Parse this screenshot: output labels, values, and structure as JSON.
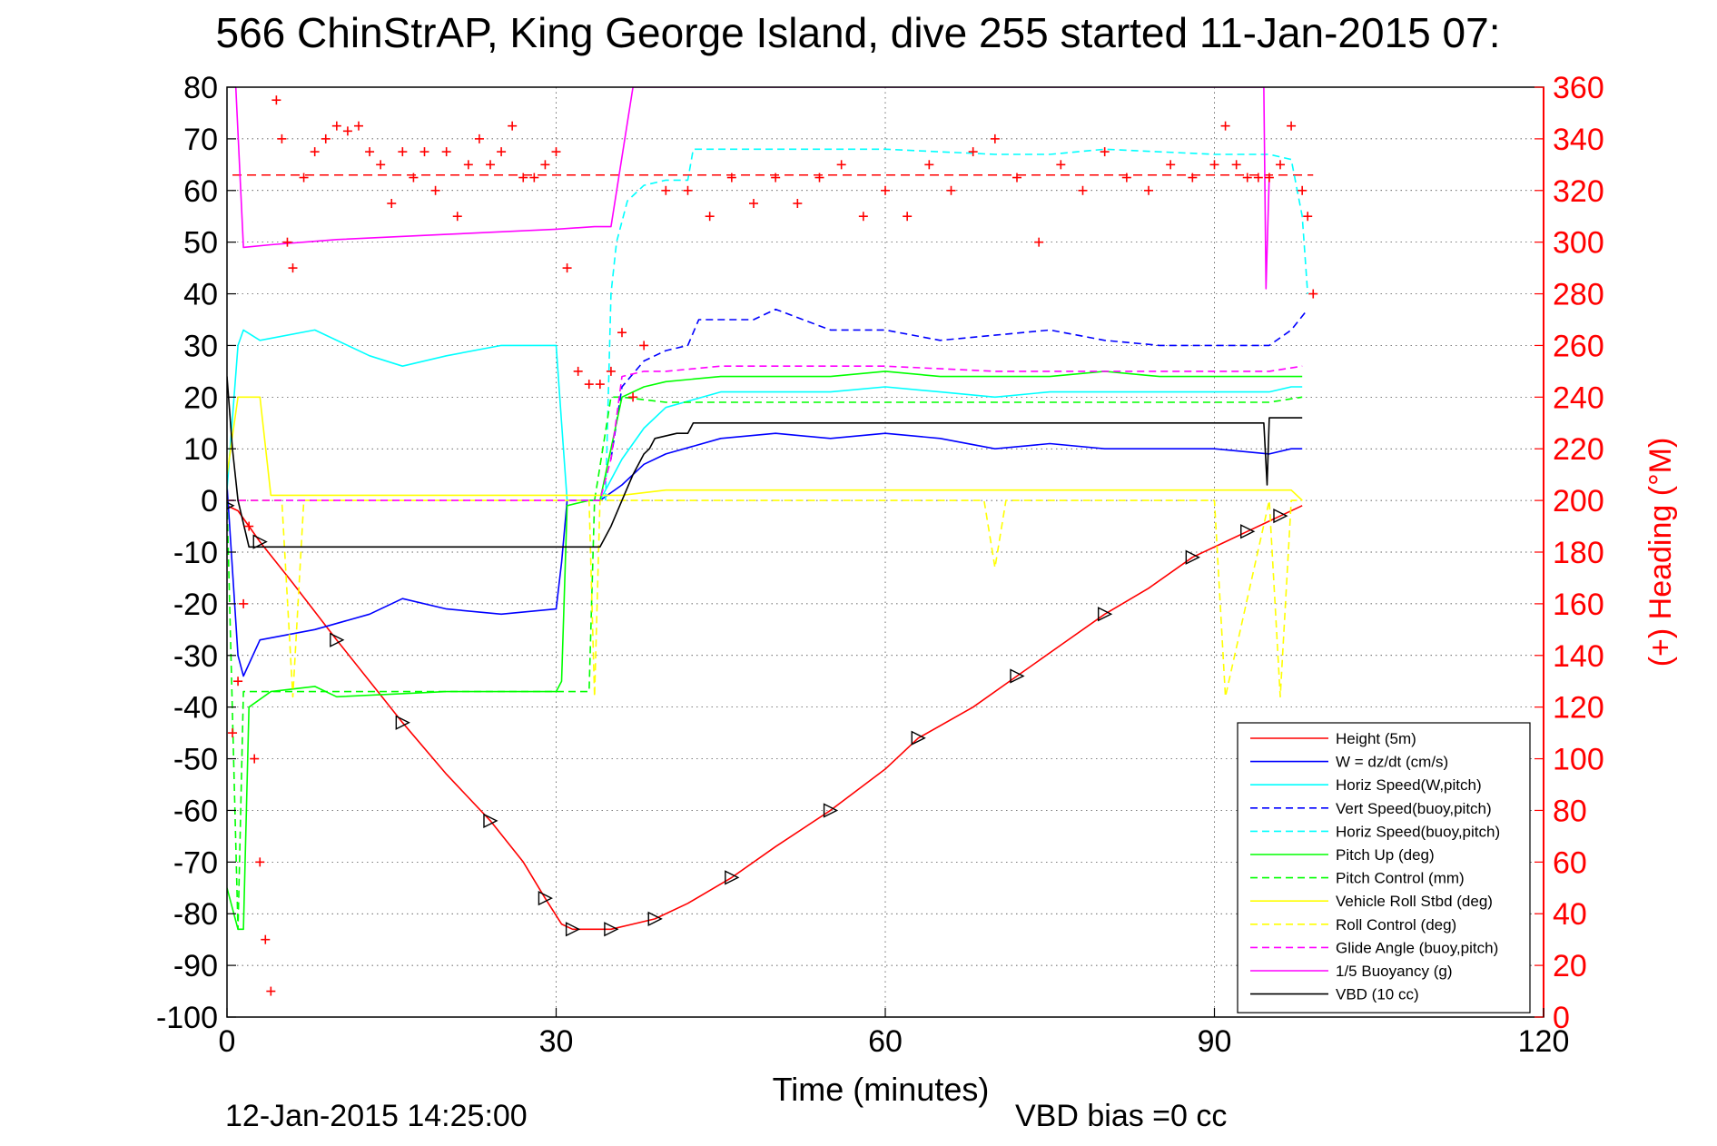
{
  "chart_data": {
    "type": "line",
    "title": "566 ChinStrAP, King George Island, dive 255 started 11-Jan-2015 07:",
    "xlabel": "Time (minutes)",
    "ylabel": "",
    "y2label": "(+) Heading (°M)",
    "footer_left": "12-Jan-2015 14:25:00",
    "footer_right": "VBD bias =0 cc",
    "xlim": [
      0,
      120
    ],
    "ylim": [
      -100,
      80
    ],
    "y2lim": [
      0,
      360
    ],
    "xticks": [
      0,
      30,
      60,
      90,
      120
    ],
    "yticks": [
      -100,
      -90,
      -80,
      -70,
      -60,
      -50,
      -40,
      -30,
      -20,
      -10,
      0,
      10,
      20,
      30,
      40,
      50,
      60,
      70,
      80
    ],
    "y2ticks": [
      0,
      20,
      40,
      60,
      80,
      100,
      120,
      140,
      160,
      180,
      200,
      220,
      240,
      260,
      280,
      300,
      320,
      340,
      360
    ],
    "grid": true,
    "legend_position": "lower-right",
    "heading_color": "#ff0000",
    "series": [
      {
        "name": "Height (5m)",
        "color": "#ff0000",
        "style": "solid",
        "x": [
          0,
          1,
          3,
          6,
          10,
          13,
          16,
          20,
          24,
          27,
          29,
          30.5,
          31.5,
          33,
          35,
          37,
          39,
          42,
          46,
          50,
          55,
          60,
          63,
          68,
          72,
          76,
          80,
          84,
          88,
          91,
          93,
          95,
          96,
          98
        ],
        "y": [
          -1,
          -2,
          -8,
          -16,
          -27,
          -35,
          -43,
          -53,
          -62,
          -70,
          -77,
          -82,
          -83,
          -83,
          -83,
          -82,
          -81,
          -78,
          -73,
          -67,
          -60,
          -52,
          -46,
          -40,
          -34,
          -28,
          -22,
          -17,
          -11,
          -8,
          -6,
          -4,
          -3,
          -1
        ]
      },
      {
        "name": "W = dz/dt (cm/s)",
        "color": "#0000ff",
        "style": "solid",
        "x": [
          0,
          1,
          1.5,
          3,
          8,
          13,
          16,
          20,
          25,
          30,
          30.5,
          31,
          33,
          34,
          36,
          38,
          40,
          45,
          50,
          55,
          60,
          65,
          70,
          75,
          80,
          85,
          90,
          95,
          97,
          98
        ],
        "y": [
          3,
          -30,
          -34,
          -27,
          -25,
          -22,
          -19,
          -21,
          -22,
          -21,
          -12,
          0,
          0,
          0,
          3,
          7,
          9,
          12,
          13,
          12,
          13,
          12,
          10,
          11,
          10,
          10,
          10,
          9,
          10,
          10
        ]
      },
      {
        "name": "Horiz Speed(W,pitch)",
        "color": "#00ffff",
        "style": "solid",
        "x": [
          0,
          1,
          1.5,
          3,
          8,
          13,
          16,
          20,
          25,
          30,
          30.5,
          31,
          33,
          34,
          36,
          38,
          40,
          45,
          50,
          55,
          60,
          65,
          70,
          75,
          80,
          85,
          90,
          95,
          97,
          98
        ],
        "y": [
          2,
          30,
          33,
          31,
          33,
          28,
          26,
          28,
          30,
          30,
          15,
          0,
          0,
          0,
          8,
          14,
          18,
          21,
          21,
          21,
          22,
          21,
          20,
          21,
          21,
          21,
          21,
          21,
          22,
          22
        ]
      },
      {
        "name": "Vert Speed(buoy,pitch)",
        "color": "#0000ff",
        "style": "dashed",
        "x": [
          35,
          36,
          38,
          40,
          42,
          43,
          48,
          50,
          55,
          60,
          65,
          70,
          75,
          80,
          85,
          90,
          95,
          97,
          98.5
        ],
        "y": [
          8,
          22,
          27,
          29,
          30,
          35,
          35,
          37,
          33,
          33,
          31,
          32,
          33,
          31,
          30,
          30,
          30,
          33,
          37
        ]
      },
      {
        "name": "Horiz Speed(buoy,pitch)",
        "color": "#00ffff",
        "style": "dashed",
        "x": [
          34.5,
          35,
          35.5,
          36.5,
          38,
          40,
          42,
          42.5,
          48,
          55,
          60,
          70,
          75,
          80,
          90,
          95,
          97,
          98,
          98.5
        ],
        "y": [
          0,
          40,
          50,
          58,
          61,
          62,
          62,
          68,
          68,
          68,
          68,
          67,
          67,
          68,
          67,
          67,
          66,
          55,
          40
        ]
      },
      {
        "name": "Pitch Up (deg)",
        "color": "#00ff00",
        "style": "solid",
        "x": [
          0,
          1,
          1.5,
          2,
          4,
          8,
          10,
          20,
          30,
          30.5,
          31,
          33,
          34,
          36,
          38,
          40,
          45,
          50,
          55,
          60,
          65,
          70,
          75,
          80,
          85,
          90,
          95,
          97,
          98
        ],
        "y": [
          -75,
          -83,
          -83,
          -40,
          -37,
          -36,
          -38,
          -37,
          -37,
          -35,
          -1,
          0,
          0,
          20,
          22,
          23,
          24,
          24,
          24,
          25,
          24,
          24,
          24,
          25,
          24,
          24,
          24,
          24,
          24
        ]
      },
      {
        "name": "Pitch Control (mm)",
        "color": "#00ff00",
        "style": "dashed",
        "x": [
          0,
          1,
          1.5,
          33,
          33.5,
          35,
          36,
          40,
          50,
          60,
          70,
          80,
          90,
          95,
          98
        ],
        "y": [
          0,
          -83,
          -37,
          -37,
          0,
          20,
          20,
          19,
          19,
          19,
          19,
          19,
          19,
          19,
          20
        ]
      },
      {
        "name": "Vehicle Roll Stbd (deg)",
        "color": "#ffff00",
        "style": "solid",
        "x": [
          0,
          1,
          2,
          3,
          4,
          5,
          10,
          20,
          30,
          33,
          34,
          36,
          40,
          50,
          60,
          70,
          80,
          90,
          95,
          97,
          98
        ],
        "y": [
          5,
          20,
          20,
          20,
          1,
          1,
          1,
          1,
          1,
          1,
          1,
          1,
          2,
          2,
          2,
          2,
          2,
          2,
          2,
          2,
          0
        ]
      },
      {
        "name": "Roll Control (deg)",
        "color": "#ffff00",
        "style": "dashed",
        "x": [
          0,
          1,
          5,
          6,
          7,
          20,
          30,
          33,
          33.5,
          34,
          50,
          69,
          70,
          71,
          90,
          91,
          95,
          96,
          97,
          98
        ],
        "y": [
          0,
          0,
          0,
          -38,
          0,
          0,
          0,
          0,
          -38,
          0,
          0,
          0,
          -13,
          0,
          0,
          -38,
          0,
          -38,
          0,
          0
        ]
      },
      {
        "name": "Glide Angle (buoy,pitch)",
        "color": "#ff00ff",
        "style": "dashed",
        "x": [
          0,
          34,
          35,
          36,
          38,
          40,
          45,
          50,
          60,
          70,
          80,
          90,
          95,
          98
        ],
        "y": [
          0,
          0,
          8,
          24,
          25,
          25,
          26,
          26,
          26,
          25,
          25,
          25,
          25,
          26
        ]
      },
      {
        "name": "1/5 Buoyancy (g)",
        "color": "#ff00ff",
        "style": "solid",
        "x": [
          0.8,
          1.5,
          4,
          10,
          20,
          30,
          33.5,
          35,
          37,
          94.5,
          94.7,
          95
        ],
        "y": [
          80,
          49,
          49.5,
          50.5,
          51.5,
          52.5,
          53,
          53,
          80,
          80,
          41,
          63
        ]
      },
      {
        "name": "VBD (10 cc)",
        "color": "#000000",
        "style": "solid",
        "x": [
          0,
          0.5,
          1,
          2,
          3,
          33,
          34,
          35,
          36,
          37,
          38,
          38.5,
          39,
          41,
          42,
          42.5,
          60,
          70,
          80,
          90,
          94.5,
          94.8,
          95,
          98
        ],
        "y": [
          24,
          10,
          0,
          -9,
          -9,
          -9,
          -9,
          -5,
          0,
          5,
          9,
          10,
          12,
          13,
          13,
          15,
          15,
          15,
          15,
          15,
          15,
          3,
          16,
          16
        ]
      }
    ],
    "heading": {
      "name": "(+) Heading",
      "color": "#ff0000",
      "marker": "+",
      "axis": "right",
      "target": 326,
      "x": [
        0.5,
        1,
        1.5,
        2,
        2.5,
        3,
        3.5,
        4,
        4.5,
        5,
        5.5,
        6,
        7,
        8,
        9,
        10,
        11,
        12,
        13,
        14,
        15,
        16,
        17,
        18,
        19,
        20,
        21,
        22,
        23,
        24,
        25,
        26,
        27,
        28,
        29,
        30,
        31,
        32,
        33,
        34,
        35,
        36,
        37,
        38,
        40,
        42,
        44,
        46,
        48,
        50,
        52,
        54,
        56,
        58,
        60,
        62,
        64,
        66,
        68,
        70,
        72,
        74,
        76,
        78,
        80,
        82,
        84,
        86,
        88,
        90,
        91,
        92,
        93,
        94,
        95,
        96,
        97,
        98,
        98.5,
        99
      ],
      "y": [
        110,
        130,
        160,
        190,
        100,
        60,
        30,
        10,
        355,
        340,
        300,
        290,
        325,
        335,
        340,
        345,
        343,
        345,
        335,
        330,
        315,
        335,
        325,
        335,
        320,
        335,
        310,
        330,
        340,
        330,
        335,
        345,
        325,
        325,
        330,
        335,
        290,
        250,
        245,
        245,
        250,
        265,
        240,
        260,
        320,
        320,
        310,
        325,
        315,
        325,
        315,
        325,
        330,
        310,
        320,
        310,
        330,
        320,
        335,
        340,
        325,
        300,
        330,
        320,
        335,
        325,
        320,
        330,
        325,
        330,
        345,
        330,
        325,
        325,
        325,
        330,
        345,
        320,
        310,
        280
      ]
    }
  }
}
